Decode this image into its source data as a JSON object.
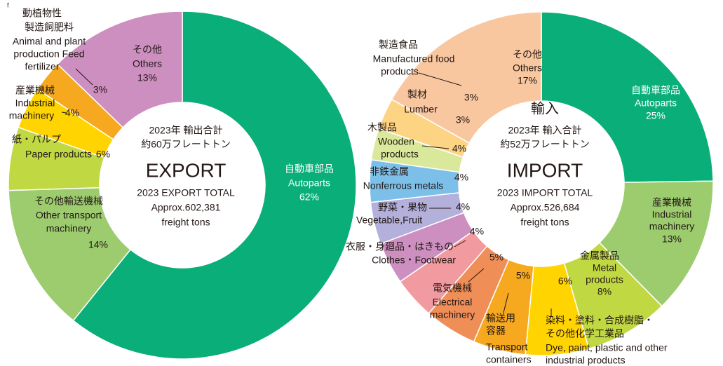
{
  "corner_text": "f",
  "chart_data": [
    {
      "type": "donut",
      "center_text": [
        "2023年 輸出合計",
        "約60万フレートトン",
        "EXPORT",
        "2023 EXPORT TOTAL",
        "Approx.602,381",
        "freight tons"
      ],
      "categories": [
        [
          "自動車部品",
          "Autoparts"
        ],
        [
          "その他輸送機械",
          "Other transport",
          "machinery"
        ],
        [
          "紙・パルプ",
          "Paper products"
        ],
        [
          "産業機械",
          "Industrial",
          "machinery"
        ],
        [
          "動植物性",
          "製造飼肥料",
          "Animal and plant",
          "production Feed",
          "fertilizer"
        ],
        [
          "その他",
          "Others"
        ]
      ],
      "values": [
        62,
        14,
        6,
        4,
        3,
        13
      ],
      "value_labels": [
        "62%",
        "14%",
        "6%",
        "4%",
        "3%",
        "13%"
      ],
      "colors": [
        "#0aae79",
        "#9ccc6e",
        "#c0d842",
        "#ffd400",
        "#f6a81f",
        "#cc8fc0"
      ]
    },
    {
      "type": "donut",
      "center_text": [
        "輸入",
        "2023年 輸入合計",
        "約52万フレートトン",
        "IMPORT",
        "2023 IMPORT TOTAL",
        "Approx.526,684",
        "freight tons"
      ],
      "categories": [
        [
          "自動車部品",
          "Autoparts"
        ],
        [
          "産業機械",
          "Industrial",
          "machinery"
        ],
        [
          "金属製品",
          "Metal",
          "products"
        ],
        [
          "染料・塗料・合成樹脂・",
          "その他化学工業品",
          "Dye, paint, plastic and other",
          "industrial products"
        ],
        [
          "輸送用",
          "容器",
          "Transport",
          "containers"
        ],
        [
          "電気機械",
          "Electrical",
          "machinery"
        ],
        [
          "衣服・身廻品・はきもの",
          "Clothes・Footwear"
        ],
        [
          "野菜・果物",
          "Vegetable,Fruit"
        ],
        [
          "非鉄金属",
          "Nonferrous metals"
        ],
        [
          "木製品",
          "Wooden",
          "products"
        ],
        [
          "製材",
          "Lumber"
        ],
        [
          "製造食品",
          "Manufactured food",
          "products"
        ],
        [
          "その他",
          "Others"
        ]
      ],
      "values": [
        25,
        13,
        8,
        6,
        5,
        5,
        4,
        4,
        4,
        4,
        3,
        3,
        17
      ],
      "value_labels": [
        "25%",
        "13%",
        "8%",
        "6%",
        "5%",
        "5%",
        "4%",
        "4%",
        "4%",
        "4%",
        "3%",
        "3%",
        "17%"
      ],
      "colors": [
        "#0aae79",
        "#9ccc6e",
        "#c0d842",
        "#ffd400",
        "#f6a81f",
        "#f08e58",
        "#f19aa0",
        "#cc8fc0",
        "#b3b0dc",
        "#7cc0ea",
        "#d9e89a",
        "#fdd384",
        "#f8c7a0"
      ]
    }
  ]
}
